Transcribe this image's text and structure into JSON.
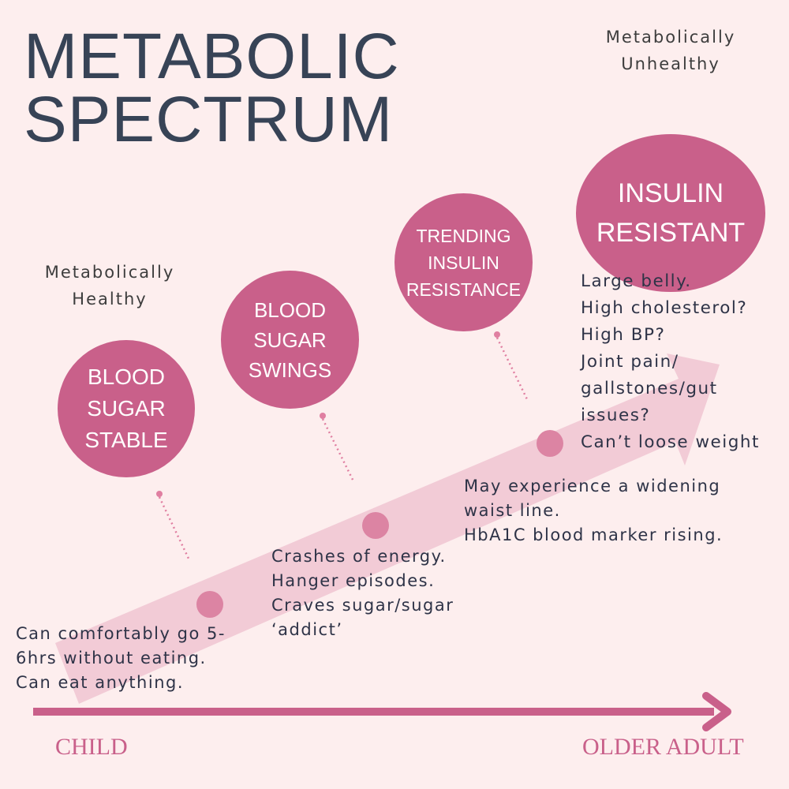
{
  "title": {
    "line1": "METABOLIC",
    "line2": "SPECTRUM"
  },
  "top_right_label": "Metabolically\nUnhealthy",
  "left_label": "Metabolically\nHealthy",
  "stages": [
    {
      "name": "BLOOD\nSUGAR\nSTABLE",
      "description": "Can comfortably go 5-\n6hrs without eating.\nCan eat anything."
    },
    {
      "name": "BLOOD\nSUGAR\nSWINGS",
      "description": "Crashes of energy.\nHanger episodes.\nCraves sugar/sugar\n‘addict’"
    },
    {
      "name": "TRENDING\nINSULIN\nRESISTANCE",
      "description": "May experience a widening\nwaist line.\nHbA1C blood marker rising."
    },
    {
      "name": "INSULIN\nRESISTANT",
      "description": "Large belly.\nHigh cholesterol?\nHigh BP?\nJoint pain/\ngallstones/gut\nissues?\nCan’t loose weight"
    }
  ],
  "axis": {
    "start": "CHILD",
    "end": "OLDER ADULT"
  },
  "colors": {
    "background": "#fdeeee",
    "accent": "#c9608a",
    "title": "#374356",
    "arrow_band": "#f2cbd6",
    "marker": "#dc84a3"
  }
}
